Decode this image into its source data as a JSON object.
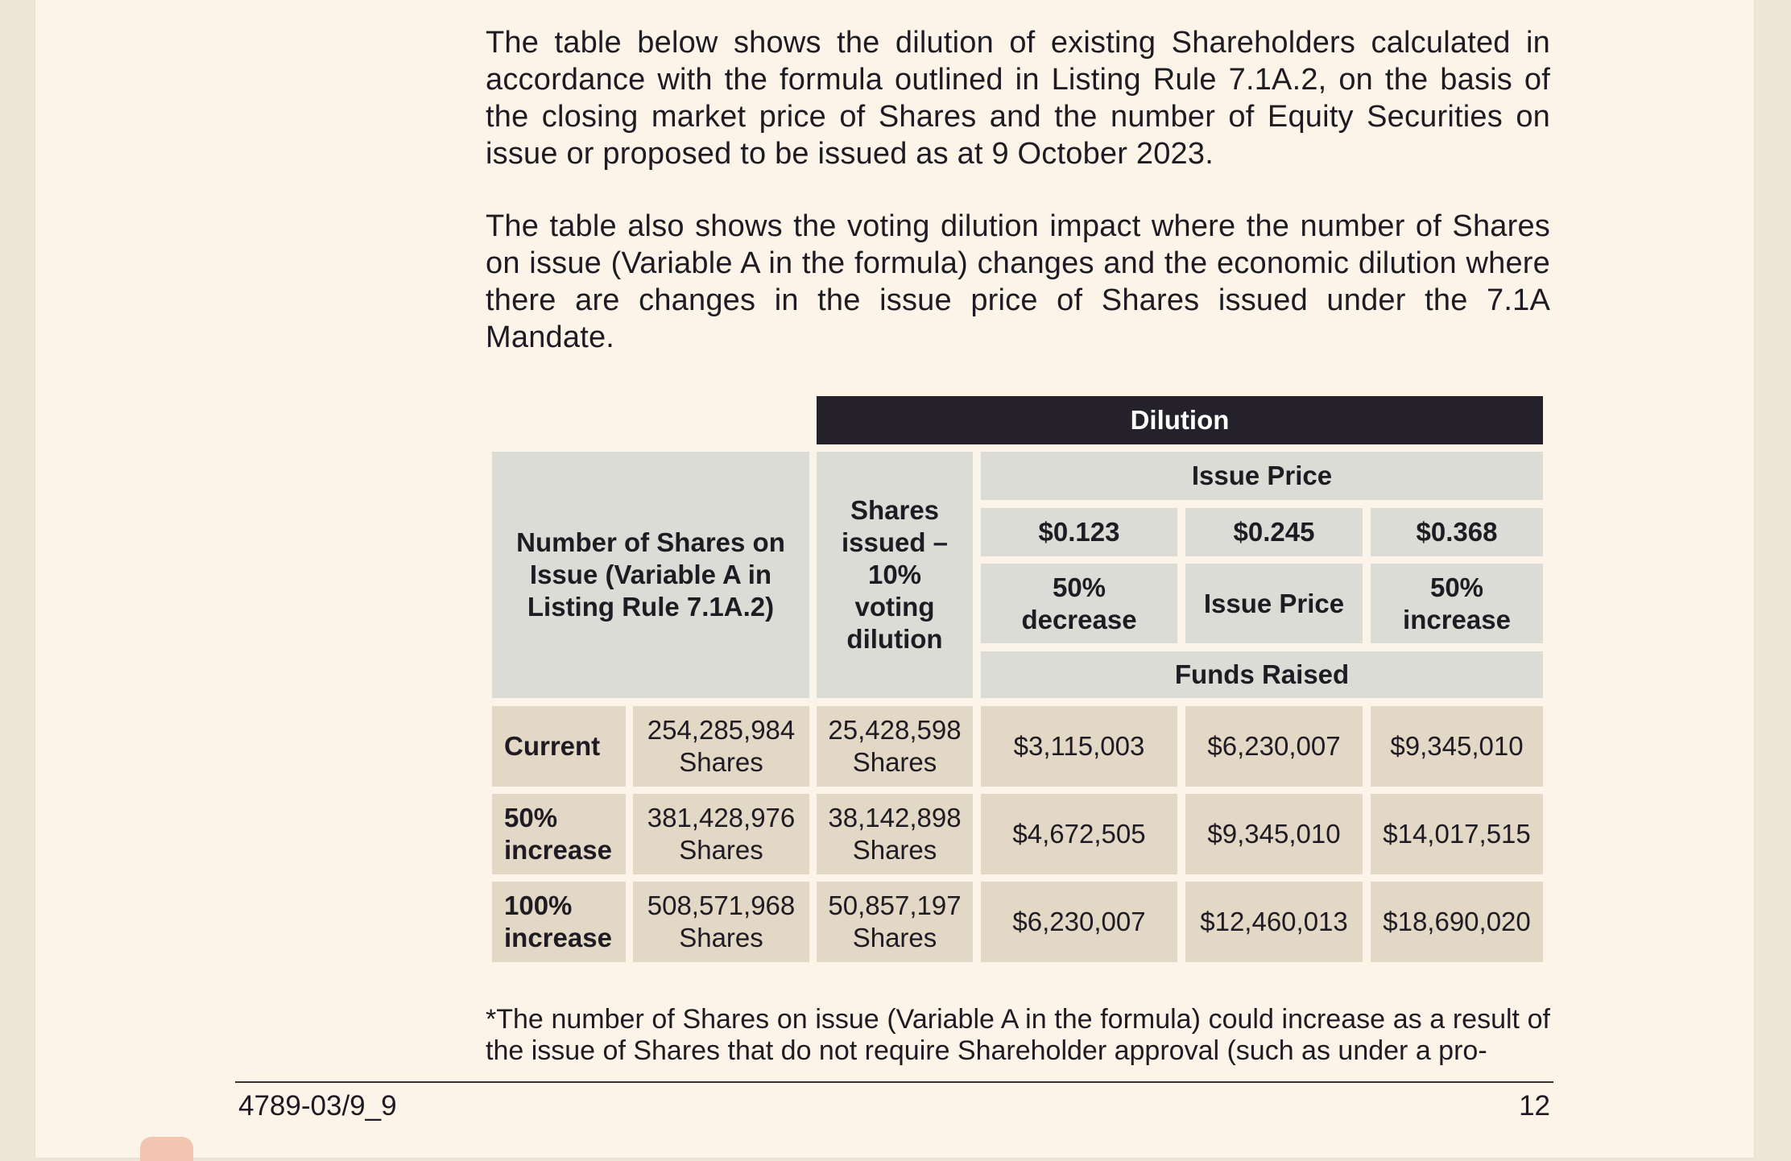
{
  "intro": {
    "para1": "The table below shows the dilution of existing Shareholders calculated in accordance with the formula outlined in Listing Rule 7.1A.2, on the basis of the closing market price of Shares and the number of Equity Securities on issue or proposed to be issued as at 9 October 2023.",
    "para2": "The table also shows the voting dilution impact where the number of Shares on issue (Variable A in the formula) changes and the economic dilution where there are changes in the issue price of Shares issued under the 7.1A Mandate."
  },
  "table": {
    "dilution_header": "Dilution",
    "col_shares_on_issue": "Number of Shares on Issue (Variable A in Listing Rule 7.1A.2)",
    "col_shares_issued": "Shares issued – 10% voting dilution",
    "issue_price_header": "Issue Price",
    "prices": [
      "$0.123",
      "$0.245",
      "$0.368"
    ],
    "price_labels": [
      "50% decrease",
      "Issue Price",
      "50% increase"
    ],
    "funds_raised_header": "Funds Raised",
    "rows": [
      {
        "label": "Current",
        "shares_on_issue": "254,285,984 Shares",
        "shares_issued": "25,428,598 Shares",
        "funds": [
          "$3,115,003",
          "$6,230,007",
          "$9,345,010"
        ]
      },
      {
        "label": "50% increase",
        "shares_on_issue": "381,428,976 Shares",
        "shares_issued": "38,142,898 Shares",
        "funds": [
          "$4,672,505",
          "$9,345,010",
          "$14,017,515"
        ]
      },
      {
        "label": "100% increase",
        "shares_on_issue": "508,571,968 Shares",
        "shares_issued": "50,857,197 Shares",
        "funds": [
          "$6,230,007",
          "$12,460,013",
          "$18,690,020"
        ]
      }
    ]
  },
  "footnote": "*The number of Shares on issue (Variable A in the formula) could increase as a result of the issue of Shares that do not require Shareholder approval (such as under a pro-",
  "footer": {
    "doc_ref": "4789-03/9_9",
    "page_number": "12"
  }
}
